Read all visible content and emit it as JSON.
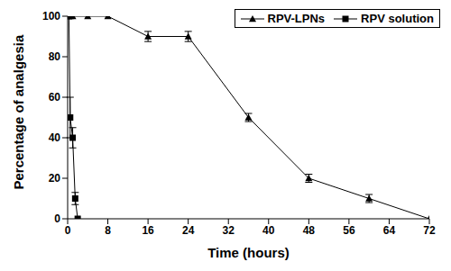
{
  "chart_data": {
    "type": "line",
    "xlabel": "Time (hours)",
    "ylabel": "Percentage of analgesia",
    "xlim": [
      0,
      72
    ],
    "xticks": [
      0,
      8,
      16,
      24,
      32,
      40,
      48,
      56,
      64,
      72
    ],
    "ylim": [
      0,
      100
    ],
    "yticks": [
      0,
      20,
      40,
      60,
      80,
      100
    ],
    "grid": false,
    "legend": "upper right",
    "series": [
      {
        "name": "RPV-LPNs",
        "color": "#000000",
        "marker": "triangle",
        "x": [
          0.5,
          1,
          4,
          8,
          16,
          24,
          36,
          48,
          60,
          72
        ],
        "values": [
          100,
          100,
          100,
          100,
          90,
          90,
          50,
          20,
          10,
          0
        ],
        "errors": [
          0,
          0,
          0,
          0,
          2.5,
          2.5,
          2,
          2,
          2,
          0
        ]
      },
      {
        "name": "RPV solution",
        "color": "#000000",
        "marker": "square",
        "x": [
          0.25,
          0.5,
          1,
          1.5,
          2
        ],
        "values": [
          100,
          50,
          40,
          10,
          0
        ],
        "errors": [
          0,
          10,
          5,
          3,
          0
        ]
      }
    ]
  }
}
